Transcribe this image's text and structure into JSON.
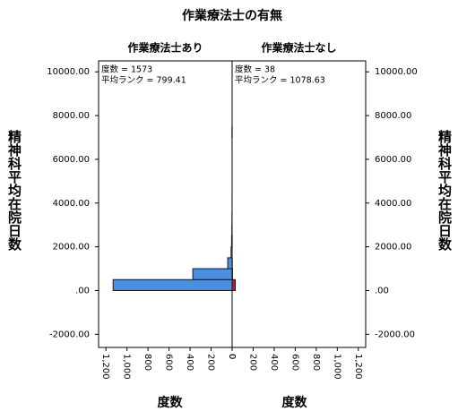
{
  "chart_data": {
    "type": "histogram",
    "title": "作業療法士の有無",
    "ylabel": "精神科平均在院日数",
    "xlabel": "度数",
    "bins": [
      0,
      500,
      1000,
      1500,
      2000,
      2500,
      3000,
      3500,
      4000,
      4500,
      5000,
      5500,
      6000,
      6500,
      7000,
      7500
    ],
    "panels": [
      {
        "title": "作業療法士あり",
        "n_label": "度数 = 1573",
        "rank_label": "平均ランク = 799.41",
        "color": "#4a8fe0",
        "counts": [
          1132,
          374,
          42,
          10,
          5,
          3,
          2,
          1,
          1,
          0,
          0,
          0,
          0,
          1,
          2
        ]
      },
      {
        "title": "作業療法士なし",
        "n_label": "度数 = 38",
        "rank_label": "平均ランク = 1078.63",
        "color": "#d0102a",
        "counts": [
          30,
          4,
          2,
          0,
          1,
          0,
          0,
          0,
          0,
          0,
          0,
          0,
          0,
          0,
          1
        ]
      }
    ],
    "xlim": [
      0,
      1270
    ],
    "xticks": [
      {
        "value": 1200,
        "label": "1,200"
      },
      {
        "value": 1000,
        "label": "1,000"
      },
      800,
      600,
      400,
      200,
      0
    ],
    "ylim": [
      -2600,
      10500
    ],
    "yticks": [
      {
        "value": 10000,
        "label": "10000.00"
      },
      {
        "value": 8000,
        "label": "8000.00"
      },
      {
        "value": 6000,
        "label": "6000.00"
      },
      {
        "value": 4000,
        "label": "4000.00"
      },
      {
        "value": 2000,
        "label": "2000.00"
      },
      {
        "value": 0,
        "label": ".00"
      },
      {
        "value": -2000,
        "label": "-2000.00"
      }
    ]
  }
}
